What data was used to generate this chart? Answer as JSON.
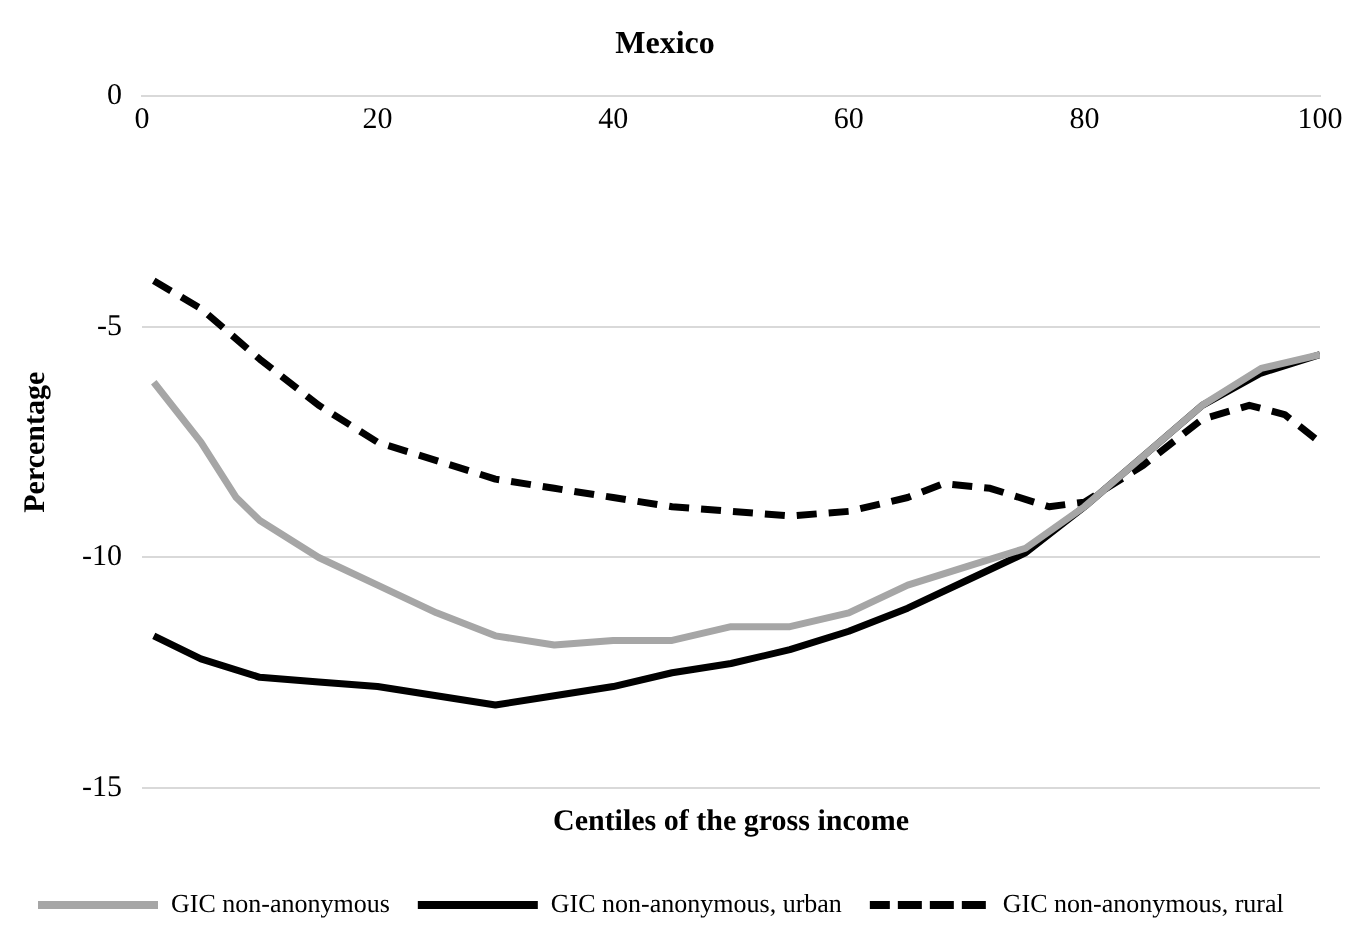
{
  "chart_data": {
    "type": "line",
    "title": "Mexico",
    "xlabel": "Centiles of the gross income",
    "ylabel": "Percentage",
    "xlim": [
      0,
      100
    ],
    "xticks": [
      0,
      20,
      40,
      60,
      80,
      100
    ],
    "ylim": [
      -15,
      0
    ],
    "yticks": [
      -15,
      -10,
      -5,
      0
    ],
    "grid": "y",
    "legend": "bottom",
    "marker": "none",
    "series": [
      {
        "name": "GIC non-anonymous",
        "color": "#a6a6a6",
        "line_style": "solid",
        "x": [
          1,
          5,
          8,
          10,
          15,
          20,
          25,
          30,
          35,
          40,
          45,
          50,
          55,
          60,
          65,
          70,
          75,
          80,
          85,
          90,
          95,
          100
        ],
        "values": [
          -6.2,
          -7.5,
          -8.7,
          -9.2,
          -10.0,
          -10.6,
          -11.2,
          -11.7,
          -11.9,
          -11.8,
          -11.8,
          -11.5,
          -11.5,
          -11.2,
          -10.6,
          -10.2,
          -9.8,
          -8.9,
          -7.8,
          -6.7,
          -5.9,
          -5.6
        ]
      },
      {
        "name": "GIC non-anonymous, urban",
        "color": "#000000",
        "line_style": "solid",
        "x": [
          1,
          5,
          10,
          15,
          20,
          25,
          30,
          35,
          40,
          45,
          50,
          55,
          60,
          65,
          70,
          75,
          80,
          85,
          90,
          95,
          100
        ],
        "values": [
          -11.7,
          -12.2,
          -12.6,
          -12.7,
          -12.8,
          -13.0,
          -13.2,
          -13.0,
          -12.8,
          -12.5,
          -12.3,
          -12.0,
          -11.6,
          -11.1,
          -10.5,
          -9.9,
          -8.9,
          -7.8,
          -6.7,
          -6.0,
          -5.6
        ]
      },
      {
        "name": "GIC non-anonymous, rural",
        "color": "#000000",
        "line_style": "dashed",
        "x": [
          1,
          5,
          10,
          15,
          20,
          25,
          30,
          35,
          40,
          45,
          50,
          55,
          60,
          65,
          68,
          72,
          77,
          80,
          85,
          90,
          94,
          97,
          100
        ],
        "values": [
          -4.0,
          -4.6,
          -5.7,
          -6.7,
          -7.5,
          -7.9,
          -8.3,
          -8.5,
          -8.7,
          -8.9,
          -9.0,
          -9.1,
          -9.0,
          -8.7,
          -8.4,
          -8.5,
          -8.9,
          -8.8,
          -8.0,
          -7.0,
          -6.7,
          -6.9,
          -7.5
        ]
      }
    ]
  }
}
